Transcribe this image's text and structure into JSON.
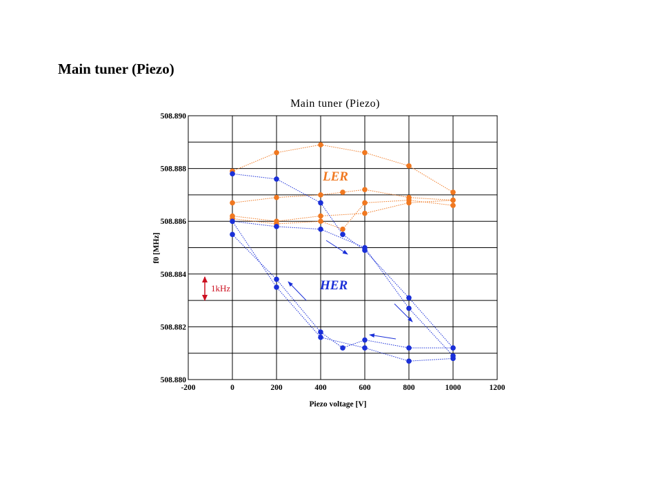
{
  "slide": {
    "title": "Main tuner (Piezo)"
  },
  "chart_data": {
    "type": "line",
    "title": "Main tuner (Piezo)",
    "xlabel": "Piezo voltage [V]",
    "ylabel": "f0 [MHz]",
    "xlim": [
      -200,
      1200
    ],
    "ylim": [
      508.88,
      508.89
    ],
    "xticks": [
      -200,
      0,
      200,
      400,
      600,
      800,
      1000,
      1200
    ],
    "xtick_labels": [
      "-200",
      "0",
      "200",
      "400",
      "600",
      "800",
      "1000",
      "1200"
    ],
    "yticks": [
      508.88,
      508.882,
      508.884,
      508.886,
      508.888,
      508.89
    ],
    "ytick_labels": [
      "508.880",
      "508.882",
      "508.884",
      "508.886",
      "508.888",
      "508.890"
    ],
    "grid": true,
    "annotations": [
      {
        "text": "LER",
        "color": "#f07820"
      },
      {
        "text": "HER",
        "color": "#1a2fd8"
      },
      {
        "text": "1kHz",
        "color": "#cc1020"
      }
    ],
    "series": [
      {
        "color": "#f07820",
        "curves": [
          {
            "x": [
              0,
              200,
              400,
              600,
              800,
              1000
            ],
            "y": [
              508.8879,
              508.8886,
              508.8889,
              508.8886,
              508.8881,
              508.8871
            ]
          },
          {
            "x": [
              0,
              200,
              400,
              500,
              600,
              800,
              1000
            ],
            "y": [
              508.8867,
              508.8869,
              508.887,
              508.8871,
              508.8872,
              508.8869,
              508.8868
            ]
          },
          {
            "x": [
              0,
              200,
              400,
              600,
              800,
              1000
            ],
            "y": [
              508.8862,
              508.886,
              508.8862,
              508.8863,
              508.8867,
              508.8868
            ]
          },
          {
            "x": [
              0,
              200,
              400,
              500,
              600,
              800,
              1000
            ],
            "y": [
              508.8861,
              508.8859,
              508.886,
              508.8857,
              508.8867,
              508.8868,
              508.8866
            ]
          }
        ]
      },
      {
        "color": "#1a2fd8",
        "curves": [
          {
            "x": [
              0,
              200,
              400,
              500,
              600,
              800,
              1000
            ],
            "y": [
              508.8878,
              508.8876,
              508.8867,
              508.8855,
              508.8849,
              508.8831,
              508.8812
            ]
          },
          {
            "x": [
              0,
              200,
              400,
              600,
              800,
              1000
            ],
            "y": [
              508.886,
              508.8858,
              508.8857,
              508.885,
              508.8827,
              508.8809
            ]
          },
          {
            "x": [
              0,
              200,
              400,
              500,
              600,
              800,
              1000
            ],
            "y": [
              508.8855,
              508.8838,
              508.8818,
              508.8812,
              508.8815,
              508.8812,
              508.8812
            ]
          },
          {
            "x": [
              0,
              200,
              400,
              600,
              800,
              1000
            ],
            "y": [
              508.886,
              508.8835,
              508.8816,
              508.8812,
              508.8807,
              508.8808
            ]
          }
        ]
      }
    ]
  }
}
